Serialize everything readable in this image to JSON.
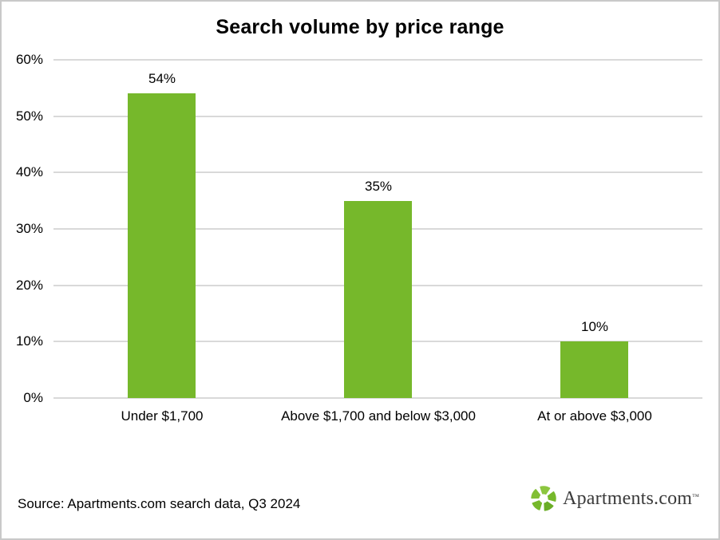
{
  "page": {
    "background": "#ffffff",
    "border_color": "#c9c9c9"
  },
  "chart_data": {
    "type": "bar",
    "title": "Search volume by price range",
    "categories": [
      "Under $1,700",
      "Above $1,700 and below $3,000",
      "At or above $3,000"
    ],
    "values": [
      54,
      35,
      10
    ],
    "value_labels": [
      "54%",
      "35%",
      "10%"
    ],
    "xlabel": "",
    "ylabel": "",
    "ylim": [
      0,
      60
    ],
    "ytick_step": 10,
    "ytick_labels": [
      "0%",
      "10%",
      "20%",
      "30%",
      "40%",
      "50%",
      "60%"
    ],
    "grid": true,
    "legend": false,
    "bar_color": "#76b82b",
    "gridline_color": "#d9d9d9"
  },
  "footer": {
    "source_text": "Source: Apartments.com search data, Q3 2024",
    "logo": {
      "icon": "apartments-pinwheel-icon",
      "text": "Apartments.com",
      "trademark": "™",
      "leaf_colors": [
        "#8cc63f",
        "#76b82b",
        "#6aad26",
        "#76b82b",
        "#82bf35"
      ],
      "text_color": "#3a3a3a"
    }
  }
}
